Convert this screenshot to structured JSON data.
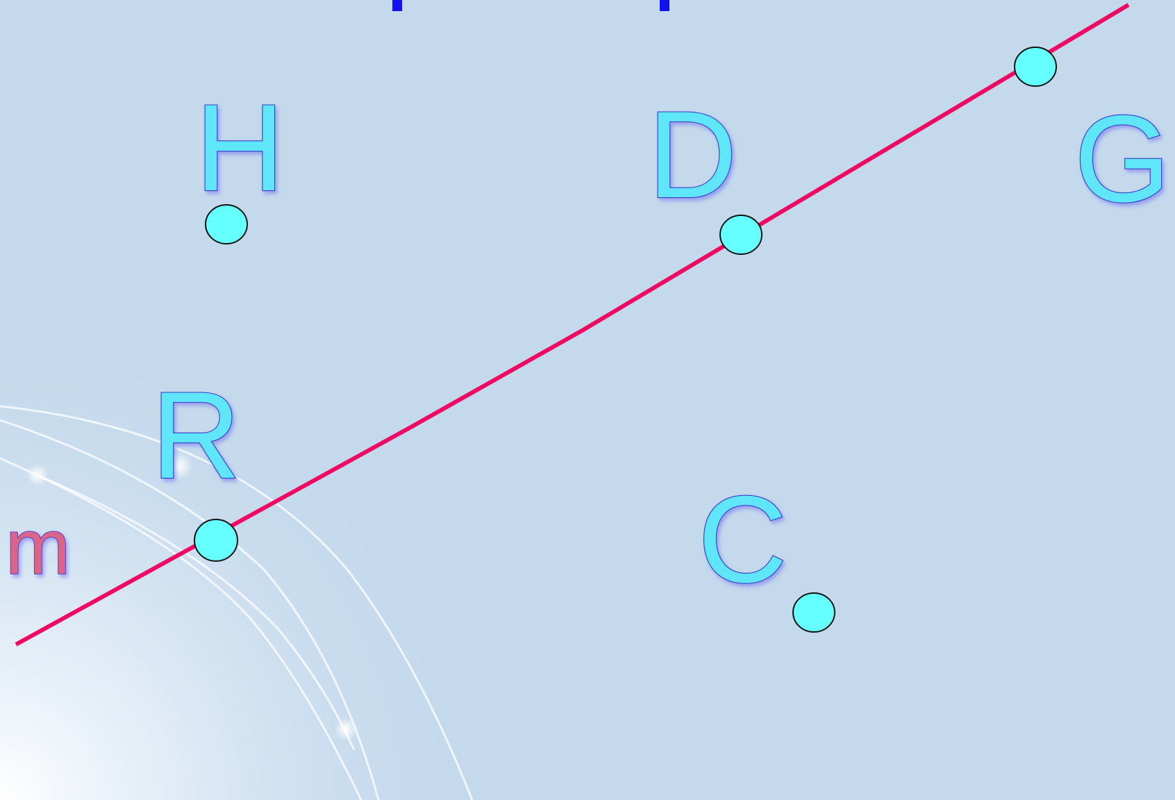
{
  "diagram": {
    "line_label": "m",
    "line_color": "#ee0a63",
    "point_fill": "#66ffff",
    "label_fill": "#5fe6f8",
    "label_stroke": "#3a3ac8",
    "line_label_fill": "#d9668a",
    "top_marks_color": "#1010f0",
    "background_color": "#c4d9ec",
    "points": {
      "H": "H",
      "D": "D",
      "G": "G",
      "R": "R",
      "C": "C"
    }
  }
}
